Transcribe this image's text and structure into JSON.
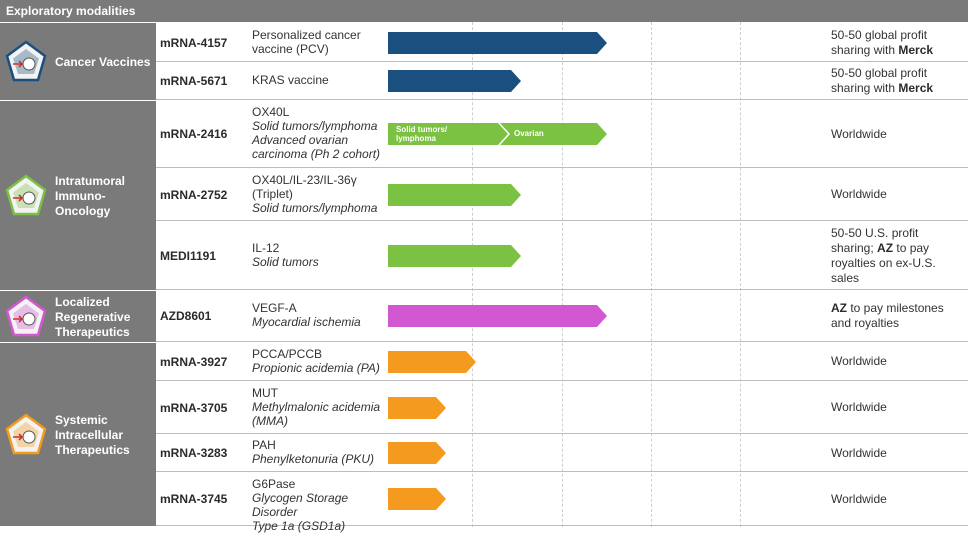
{
  "header": {
    "title": "Exploratory modalities"
  },
  "colors": {
    "header_bg": "#7a7a7a",
    "cancer_vaccines": "#1b4f7f",
    "intratumoral": "#7bc142",
    "regenerative": "#d158d1",
    "systemic": "#f39a1f"
  },
  "modalities": [
    {
      "label": "Cancer Vaccines",
      "icon": "cancer-vaccine-icon",
      "color": "#1b4f7f"
    },
    {
      "label": "Intratumoral Immuno-Oncology",
      "icon": "immuno-oncology-icon",
      "color": "#7bc142"
    },
    {
      "label": "Localized Regenerative Therapeutics",
      "icon": "regenerative-icon",
      "color": "#d158d1"
    },
    {
      "label": "Systemic Intracellular Therapeutics",
      "icon": "intracellular-icon",
      "color": "#f39a1f"
    }
  ],
  "programs": [
    {
      "code": "mRNA-4157",
      "desc_lines": [
        "Personalized cancer",
        "vaccine (PCV)"
      ],
      "desc_italic": [],
      "stage_fraction": 0.51,
      "color": "#1b4f7f",
      "partner_parts": [
        [
          "50-50 global profit",
          ""
        ],
        [
          "sharing with ",
          "Merck"
        ]
      ]
    },
    {
      "code": "mRNA-5671",
      "desc_lines": [
        "KRAS vaccine"
      ],
      "desc_italic": [],
      "stage_fraction": 0.31,
      "color": "#1b4f7f",
      "partner_parts": [
        [
          "50-50 global profit",
          ""
        ],
        [
          "sharing with ",
          "Merck"
        ]
      ]
    },
    {
      "code": "mRNA-2416",
      "desc_lines": [
        "OX40L"
      ],
      "desc_italic": [
        "Solid tumors/lymphoma",
        "Advanced ovarian",
        "carcinoma (Ph 2 cohort)"
      ],
      "stage_fraction": 0.51,
      "color": "#7bc142",
      "segments": [
        "Solid tumors/ lymphoma",
        "Ovarian"
      ],
      "partner_parts": [
        [
          "Worldwide",
          ""
        ]
      ]
    },
    {
      "code": "mRNA-2752",
      "desc_lines": [
        "OX40L/IL-23/IL-36γ",
        "(Triplet)"
      ],
      "desc_italic": [
        "Solid tumors/lymphoma"
      ],
      "stage_fraction": 0.31,
      "color": "#7bc142",
      "partner_parts": [
        [
          "Worldwide",
          ""
        ]
      ]
    },
    {
      "code": "MEDI1191",
      "desc_lines": [
        "IL-12"
      ],
      "desc_italic": [
        "Solid tumors"
      ],
      "stage_fraction": 0.31,
      "color": "#7bc142",
      "partner_parts": [
        [
          "50-50 U.S. profit",
          ""
        ],
        [
          "sharing; ",
          "AZ",
          " to pay"
        ],
        [
          "royalties on ex-U.S.",
          ""
        ],
        [
          "sales",
          ""
        ]
      ]
    },
    {
      "code": "AZD8601",
      "desc_lines": [
        "VEGF-A"
      ],
      "desc_italic": [
        "Myocardial ischemia"
      ],
      "stage_fraction": 0.51,
      "color": "#d158d1",
      "partner_parts": [
        [
          "",
          "AZ",
          " to pay milestones"
        ],
        [
          "and royalties",
          ""
        ]
      ]
    },
    {
      "code": "mRNA-3927",
      "desc_lines": [
        "PCCA/PCCB"
      ],
      "desc_italic": [
        "Propionic acidemia (PA)"
      ],
      "stage_fraction": 0.205,
      "color": "#f39a1f",
      "partner_parts": [
        [
          "Worldwide",
          ""
        ]
      ]
    },
    {
      "code": "mRNA-3705",
      "desc_lines": [
        "MUT"
      ],
      "desc_italic": [
        "Methylmalonic acidemia",
        "(MMA)"
      ],
      "stage_fraction": 0.135,
      "color": "#f39a1f",
      "partner_parts": [
        [
          "Worldwide",
          ""
        ]
      ]
    },
    {
      "code": "mRNA-3283",
      "desc_lines": [
        "PAH"
      ],
      "desc_italic": [
        "Phenylketonuria (PKU)"
      ],
      "stage_fraction": 0.135,
      "color": "#f39a1f",
      "partner_parts": [
        [
          "Worldwide",
          ""
        ]
      ]
    },
    {
      "code": "mRNA-3745",
      "desc_lines": [
        "G6Pase"
      ],
      "desc_italic": [
        "Glycogen Storage Disorder",
        "Type 1a (GSD1a)"
      ],
      "stage_fraction": 0.135,
      "color": "#f39a1f",
      "partner_parts": [
        [
          "Worldwide",
          ""
        ]
      ]
    }
  ]
}
